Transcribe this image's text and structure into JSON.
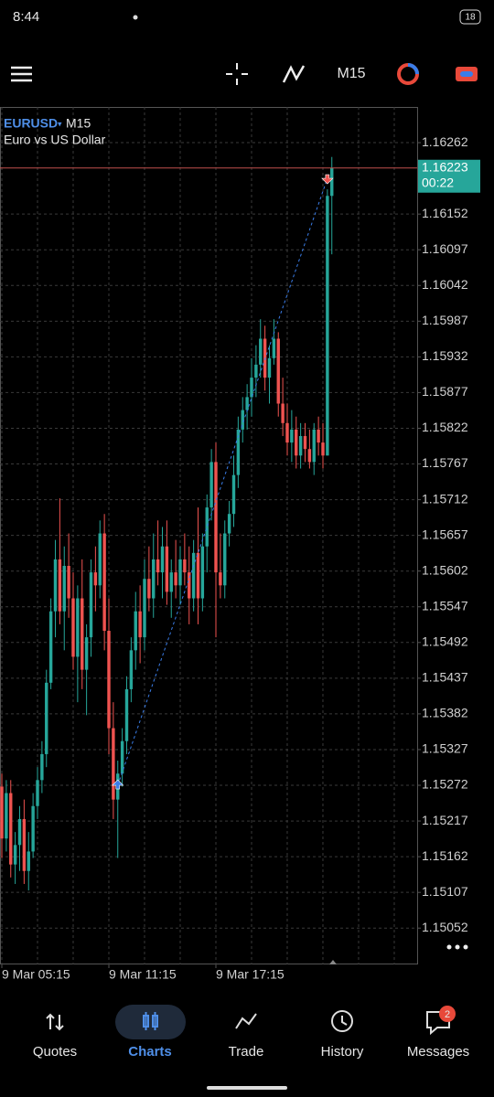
{
  "status_bar": {
    "time": "8:44",
    "battery": "18"
  },
  "toolbar": {
    "timeframe": "M15"
  },
  "chart_header": {
    "symbol": "EURUSD",
    "timeframe": "M15",
    "description": "Euro vs US Dollar"
  },
  "chart_data": {
    "type": "candlestick",
    "open": [
      1.1527,
      1.1519,
      1.1526,
      1.1515,
      1.1518,
      1.1522,
      1.1514,
      1.1517,
      1.1524,
      1.1528,
      1.1532,
      1.1543,
      1.1554,
      1.1562,
      1.1554,
      1.1561,
      1.1556,
      1.1547,
      1.1556,
      1.1545,
      1.155,
      1.156,
      1.1558,
      1.1566,
      1.1551,
      1.1536,
      1.1525,
      1.1529,
      1.1534,
      1.1542,
      1.1548,
      1.1554,
      1.155,
      1.1559,
      1.1556,
      1.1562,
      1.156,
      1.1564,
      1.1557,
      1.156,
      1.1558,
      1.1562,
      1.156,
      1.1556,
      1.1563,
      1.1556,
      1.1564,
      1.157,
      1.1577,
      1.156,
      1.1558,
      1.1566,
      1.1569,
      1.1575,
      1.1582,
      1.1585,
      1.1587,
      1.159,
      1.1592,
      1.1596,
      1.159,
      1.1593,
      1.1596,
      1.1586,
      1.1583,
      1.158,
      1.1582,
      1.1578,
      1.1581,
      1.1579,
      1.1577,
      1.1582,
      1.158,
      1.1578,
      1.1618
    ],
    "high": [
      1.1529,
      1.1528,
      1.1528,
      1.152,
      1.1524,
      1.1525,
      1.152,
      1.1526,
      1.153,
      1.1534,
      1.1545,
      1.1556,
      1.1565,
      1.15714,
      1.1564,
      1.1566,
      1.156,
      1.1558,
      1.1562,
      1.1552,
      1.1562,
      1.1564,
      1.1568,
      1.1569,
      1.1556,
      1.154,
      1.1531,
      1.1536,
      1.1544,
      1.155,
      1.1557,
      1.1558,
      1.1562,
      1.1564,
      1.1566,
      1.1568,
      1.1567,
      1.1568,
      1.1562,
      1.1565,
      1.1564,
      1.1566,
      1.1564,
      1.1565,
      1.157,
      1.1566,
      1.1572,
      1.1579,
      1.158,
      1.1566,
      1.1568,
      1.1571,
      1.1578,
      1.1584,
      1.1587,
      1.1589,
      1.1593,
      1.1595,
      1.1599,
      1.1598,
      1.1595,
      1.1599,
      1.1597,
      1.159,
      1.1586,
      1.1585,
      1.1584,
      1.1583,
      1.1583,
      1.1582,
      1.1583,
      1.1584,
      1.1583,
      1.1619,
      1.1624
    ],
    "low": [
      1.1516,
      1.1517,
      1.1513,
      1.1512,
      1.1514,
      1.1512,
      1.1511,
      1.1516,
      1.1522,
      1.1526,
      1.153,
      1.1542,
      1.155,
      1.1552,
      1.1548,
      1.1553,
      1.1545,
      1.154,
      1.1542,
      1.1538,
      1.1547,
      1.1554,
      1.1556,
      1.1548,
      1.1532,
      1.1522,
      1.1516,
      1.1527,
      1.1532,
      1.154,
      1.1545,
      1.1546,
      1.1548,
      1.1554,
      1.1553,
      1.1558,
      1.1556,
      1.1555,
      1.1553,
      1.1556,
      1.1555,
      1.1558,
      1.1552,
      1.1554,
      1.1552,
      1.1554,
      1.156,
      1.1568,
      1.155,
      1.1556,
      1.1556,
      1.1564,
      1.1567,
      1.1573,
      1.158,
      1.1582,
      1.1584,
      1.1587,
      1.159,
      1.1588,
      1.1586,
      1.1592,
      1.1584,
      1.1581,
      1.1578,
      1.1577,
      1.1576,
      1.1576,
      1.1577,
      1.1576,
      1.1575,
      1.1578,
      1.1576,
      1.1578,
      1.1609
    ],
    "close": [
      1.1519,
      1.1526,
      1.1515,
      1.1518,
      1.1522,
      1.1514,
      1.1517,
      1.1524,
      1.1528,
      1.1532,
      1.1543,
      1.1554,
      1.1562,
      1.1554,
      1.1561,
      1.1556,
      1.1547,
      1.1556,
      1.1545,
      1.155,
      1.156,
      1.1558,
      1.1566,
      1.1551,
      1.1536,
      1.1525,
      1.1529,
      1.1534,
      1.1542,
      1.1548,
      1.1554,
      1.155,
      1.1559,
      1.1556,
      1.1562,
      1.156,
      1.1564,
      1.1557,
      1.156,
      1.1558,
      1.1562,
      1.156,
      1.1556,
      1.1563,
      1.1556,
      1.1564,
      1.157,
      1.1577,
      1.156,
      1.1558,
      1.1566,
      1.1569,
      1.1575,
      1.1582,
      1.1585,
      1.1587,
      1.159,
      1.1592,
      1.1596,
      1.159,
      1.1593,
      1.1596,
      1.1586,
      1.1583,
      1.158,
      1.1582,
      1.1578,
      1.1581,
      1.1579,
      1.1577,
      1.1582,
      1.158,
      1.1578,
      1.1618,
      1.16223
    ],
    "up_color": "#26a69a",
    "down_color": "#ef5350",
    "xlim": [
      -0.41,
      93.13
    ],
    "xticks": [
      {
        "value": 0,
        "label": "9 Mar 05:15"
      },
      {
        "value": 24,
        "label": "9 Mar 11:15"
      },
      {
        "value": 48,
        "label": "9 Mar 17:15"
      }
    ],
    "ylim": [
      1.14996,
      1.16317
    ],
    "yticks": [
      1.16262,
      1.16152,
      1.16097,
      1.16042,
      1.15987,
      1.15932,
      1.15877,
      1.15822,
      1.15767,
      1.15712,
      1.15657,
      1.15602,
      1.15547,
      1.15492,
      1.15437,
      1.15382,
      1.15327,
      1.15272,
      1.15217,
      1.15162,
      1.15107,
      1.15052
    ],
    "grid": true,
    "current_price": 1.16223,
    "countdown": "00:22",
    "buy": {
      "index": 26,
      "price": 1.15272
    },
    "sell": {
      "index": 73,
      "price": 1.16207
    }
  },
  "nav": {
    "items": [
      "Quotes",
      "Charts",
      "Trade",
      "History",
      "Messages"
    ],
    "badge": "2"
  }
}
